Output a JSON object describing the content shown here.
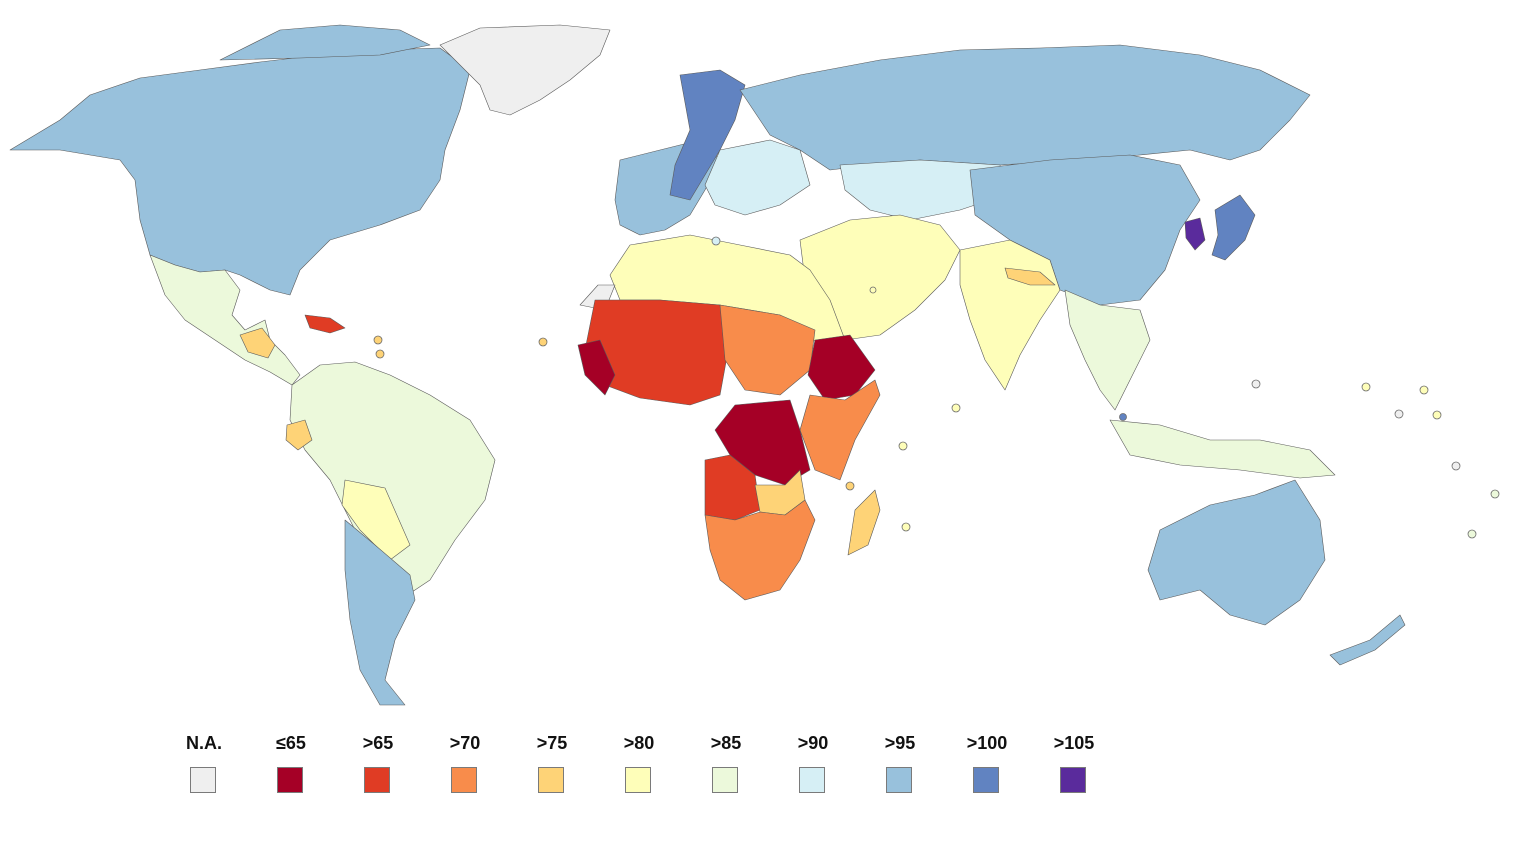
{
  "map": {
    "type": "world choropleth",
    "regions": [
      {
        "name": "north-america",
        "class": ">95"
      },
      {
        "name": "greenland",
        "class": "N.A."
      },
      {
        "name": "mexico-central-america",
        "class": ">85"
      },
      {
        "name": "guatemala-honduras",
        "class": ">75"
      },
      {
        "name": "caribbean",
        "class": ">65"
      },
      {
        "name": "south-america",
        "class": ">85"
      },
      {
        "name": "ecuador",
        "class": ">75"
      },
      {
        "name": "bolivia-paraguay",
        "class": ">80"
      },
      {
        "name": "argentina-chile",
        "class": ">95"
      },
      {
        "name": "western-europe",
        "class": ">95"
      },
      {
        "name": "central-europe-scandinavia",
        "class": ">100"
      },
      {
        "name": "eastern-europe",
        "class": ">90"
      },
      {
        "name": "russia",
        "class": ">95"
      },
      {
        "name": "central-asia",
        "class": ">90"
      },
      {
        "name": "middle-east",
        "class": ">80"
      },
      {
        "name": "india",
        "class": ">80"
      },
      {
        "name": "nepal",
        "class": ">75"
      },
      {
        "name": "china-mongolia",
        "class": ">95"
      },
      {
        "name": "korea",
        "class": ">105"
      },
      {
        "name": "japan",
        "class": ">100"
      },
      {
        "name": "southeast-asia",
        "class": ">85"
      },
      {
        "name": "indonesia-png",
        "class": ">85"
      },
      {
        "name": "australia",
        "class": ">95"
      },
      {
        "name": "new-zealand",
        "class": ">95"
      },
      {
        "name": "north-africa",
        "class": ">80"
      },
      {
        "name": "western-sahara",
        "class": "N.A."
      },
      {
        "name": "sahel",
        "class": ">65"
      },
      {
        "name": "west-africa-coast",
        "class": "≤65"
      },
      {
        "name": "sudan-chad",
        "class": ">70"
      },
      {
        "name": "ethiopia",
        "class": "≤65"
      },
      {
        "name": "east-africa",
        "class": ">70"
      },
      {
        "name": "dr-congo",
        "class": "≤65"
      },
      {
        "name": "angola",
        "class": ">65"
      },
      {
        "name": "zambia",
        "class": ">75"
      },
      {
        "name": "southern-africa",
        "class": ">70"
      },
      {
        "name": "madagascar",
        "class": ">75"
      }
    ]
  },
  "legend": [
    {
      "label": "N.A.",
      "color": "#efefef"
    },
    {
      "label": "≤65",
      "color": "#a50026"
    },
    {
      "label": ">65",
      "color": "#e03c24"
    },
    {
      "label": ">70",
      "color": "#f88c4b"
    },
    {
      "label": ">75",
      "color": "#fed377"
    },
    {
      "label": ">80",
      "color": "#fefeb9"
    },
    {
      "label": ">85",
      "color": "#ecf9db"
    },
    {
      "label": ">90",
      "color": "#d6eff5"
    },
    {
      "label": ">95",
      "color": "#98c1dc"
    },
    {
      "label": ">100",
      "color": "#6183c1"
    },
    {
      "label": ">105",
      "color": "#5a2b9c"
    }
  ]
}
